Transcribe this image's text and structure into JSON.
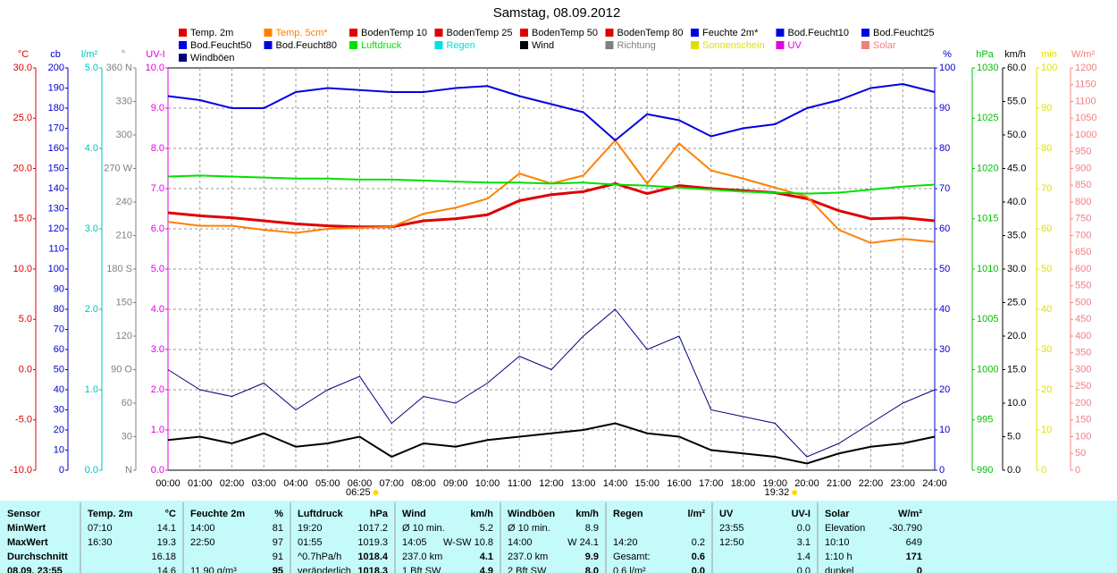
{
  "chart_data": {
    "type": "line",
    "title": "Samstag, 08.09.2012",
    "categories": [
      "00:00",
      "01:00",
      "02:00",
      "03:00",
      "04:00",
      "05:00",
      "06:00",
      "07:00",
      "08:00",
      "09:00",
      "10:00",
      "11:00",
      "12:00",
      "13:00",
      "14:00",
      "15:00",
      "16:00",
      "17:00",
      "18:00",
      "19:00",
      "20:00",
      "21:00",
      "22:00",
      "23:00",
      "24:00"
    ],
    "grid": true,
    "grid_axis": 4,
    "axes": [
      {
        "label": "°C",
        "color": "#e00000",
        "side": "left",
        "lim": [
          -10,
          30
        ],
        "ticks": [
          {
            "value": -10,
            "label": "-10.0"
          },
          {
            "value": -5,
            "label": "-5.0"
          },
          {
            "value": 0,
            "label": "0.0"
          },
          {
            "value": 5,
            "label": "5.0"
          },
          {
            "value": 10,
            "label": "10.0"
          },
          {
            "value": 15,
            "label": "15.0"
          },
          {
            "value": 20,
            "label": "20.0"
          },
          {
            "value": 25,
            "label": "25.0"
          },
          {
            "value": 30,
            "label": "30.0"
          }
        ]
      },
      {
        "label": "cb",
        "color": "#0000d0",
        "side": "left",
        "lim": [
          0,
          200
        ],
        "ticks": [
          0,
          10,
          20,
          30,
          40,
          50,
          60,
          70,
          80,
          90,
          100,
          110,
          120,
          130,
          140,
          150,
          160,
          170,
          180,
          190,
          200
        ]
      },
      {
        "label": "l/m²",
        "color": "#00c0c0",
        "side": "left",
        "lim": [
          0,
          5
        ],
        "ticks": [
          {
            "value": 0,
            "label": "0.0"
          },
          {
            "value": 1,
            "label": "1.0"
          },
          {
            "value": 2,
            "label": "2.0"
          },
          {
            "value": 3,
            "label": "3.0"
          },
          {
            "value": 4,
            "label": "4.0"
          },
          {
            "value": 5,
            "label": "5.0"
          }
        ]
      },
      {
        "label": "°",
        "color": "#808080",
        "side": "left",
        "lim": [
          0,
          360
        ],
        "ticks": [
          {
            "value": 0,
            "label": "N"
          },
          30,
          60,
          {
            "value": 90,
            "label": "90 O"
          },
          120,
          150,
          {
            "value": 180,
            "label": "180 S"
          },
          210,
          240,
          {
            "value": 270,
            "label": "270 W"
          },
          300,
          330,
          {
            "value": 360,
            "label": "360 N"
          }
        ]
      },
      {
        "label": "UV-I",
        "color": "#e000e0",
        "side": "left",
        "lim": [
          0,
          10
        ],
        "ticks": [
          {
            "value": 0,
            "label": "0.0"
          },
          {
            "value": 1,
            "label": "1.0"
          },
          {
            "value": 2,
            "label": "2.0"
          },
          {
            "value": 3,
            "label": "3.0"
          },
          {
            "value": 4,
            "label": "4.0"
          },
          {
            "value": 5,
            "label": "5.0"
          },
          {
            "value": 6,
            "label": "6.0"
          },
          {
            "value": 7,
            "label": "7.0"
          },
          {
            "value": 8,
            "label": "8.0"
          },
          {
            "value": 9,
            "label": "9.0"
          },
          {
            "value": 10,
            "label": "10.0"
          }
        ]
      },
      {
        "label": "%",
        "color": "#0000d0",
        "side": "right",
        "lim": [
          0,
          100
        ],
        "ticks": [
          0,
          10,
          20,
          30,
          40,
          50,
          60,
          70,
          80,
          90,
          100
        ]
      },
      {
        "label": "hPa",
        "color": "#00c000",
        "side": "right",
        "lim": [
          990,
          1030
        ],
        "ticks": [
          990,
          995,
          1000,
          1005,
          1010,
          1015,
          1020,
          1025,
          1030
        ]
      },
      {
        "label": "km/h",
        "color": "#000000",
        "side": "right",
        "lim": [
          0,
          60
        ],
        "ticks": [
          {
            "value": 0,
            "label": "0.0"
          },
          {
            "value": 5,
            "label": "5.0"
          },
          {
            "value": 10,
            "label": "10.0"
          },
          {
            "value": 15,
            "label": "15.0"
          },
          {
            "value": 20,
            "label": "20.0"
          },
          {
            "value": 25,
            "label": "25.0"
          },
          {
            "value": 30,
            "label": "30.0"
          },
          {
            "value": 35,
            "label": "35.0"
          },
          {
            "value": 40,
            "label": "40.0"
          },
          {
            "value": 45,
            "label": "45.0"
          },
          {
            "value": 50,
            "label": "50.0"
          },
          {
            "value": 55,
            "label": "55.0"
          },
          {
            "value": 60,
            "label": "60.0"
          }
        ]
      },
      {
        "label": "min",
        "color": "#e0e000",
        "side": "right",
        "lim": [
          0,
          100
        ],
        "ticks": [
          0,
          10,
          20,
          30,
          40,
          50,
          60,
          70,
          80,
          90,
          100
        ]
      },
      {
        "label": "W/m²",
        "color": "#f08080",
        "side": "right",
        "lim": [
          0,
          1200
        ],
        "ticks": [
          0,
          50,
          100,
          150,
          200,
          250,
          300,
          350,
          400,
          450,
          500,
          550,
          600,
          650,
          700,
          750,
          800,
          850,
          900,
          950,
          1000,
          1050,
          1100,
          1150,
          1200
        ]
      }
    ],
    "series": [
      {
        "name": "Temp. 2m",
        "color": "#e00000",
        "axis": 0,
        "width": 3,
        "values": [
          15.6,
          15.3,
          15.1,
          14.8,
          14.5,
          14.3,
          14.2,
          14.2,
          14.8,
          15.0,
          15.4,
          16.8,
          17.4,
          17.7,
          18.5,
          17.5,
          18.3,
          18.0,
          17.8,
          17.6,
          17.0,
          15.8,
          15.0,
          15.1,
          14.8
        ]
      },
      {
        "name": "Temp. 5cm*",
        "color": "#ff8000",
        "axis": 0,
        "width": 2,
        "values": [
          14.7,
          14.3,
          14.3,
          13.9,
          13.6,
          14.0,
          14.1,
          14.2,
          15.5,
          16.1,
          17.0,
          19.5,
          18.5,
          19.3,
          22.8,
          18.5,
          22.5,
          19.8,
          19.0,
          18.1,
          17.2,
          13.9,
          12.6,
          13.0,
          12.7
        ]
      },
      {
        "name": "BodenTemp 10",
        "color": "#e00000"
      },
      {
        "name": "BodenTemp 25",
        "color": "#e00000"
      },
      {
        "name": "BodenTemp 50",
        "color": "#e00000"
      },
      {
        "name": "BodenTemp 80",
        "color": "#e00000"
      },
      {
        "name": "Feuchte 2m*",
        "color": "#0000e0",
        "axis": 5,
        "width": 2,
        "values": [
          93,
          92,
          90,
          90,
          94,
          95,
          94.5,
          94,
          94,
          95,
          95.5,
          93,
          91,
          89,
          82,
          88.5,
          87,
          83,
          85,
          86,
          90,
          92,
          95,
          96,
          94
        ]
      },
      {
        "name": "Bod.Feucht10",
        "color": "#0000e0"
      },
      {
        "name": "Bod.Feucht25",
        "color": "#0000e0"
      },
      {
        "name": "Bod.Feucht50",
        "color": "#0000e0"
      },
      {
        "name": "Bod.Feucht80",
        "color": "#0000e0"
      },
      {
        "name": "Luftdruck",
        "color": "#00e000",
        "axis": 6,
        "width": 2,
        "values": [
          1019.2,
          1019.3,
          1019.2,
          1019.1,
          1019.0,
          1019.0,
          1018.9,
          1018.9,
          1018.8,
          1018.7,
          1018.6,
          1018.6,
          1018.5,
          1018.6,
          1018.4,
          1018.3,
          1018.1,
          1017.9,
          1017.7,
          1017.6,
          1017.5,
          1017.6,
          1017.9,
          1018.2,
          1018.4
        ]
      },
      {
        "name": "Regen",
        "color": "#00e0e0"
      },
      {
        "name": "Wind",
        "color": "#000000",
        "axis": 7,
        "width": 2,
        "values": [
          4.5,
          5,
          4,
          5.5,
          3.5,
          4,
          5,
          2,
          4,
          3.5,
          4.5,
          5,
          5.5,
          6,
          7,
          5.5,
          5,
          3,
          2.5,
          2,
          1,
          2.5,
          3.5,
          4,
          5
        ]
      },
      {
        "name": "Richtung",
        "color": "#808080"
      },
      {
        "name": "Sonnenschein",
        "color": "#e0e000"
      },
      {
        "name": "UV",
        "color": "#e000e0"
      },
      {
        "name": "Solar",
        "color": "#f08080"
      },
      {
        "name": "Windböen",
        "color": "#000080",
        "axis": 7,
        "width": 1,
        "values": [
          15,
          12,
          11,
          13,
          9,
          12,
          14,
          7,
          11,
          10,
          13,
          17,
          15,
          20,
          24,
          18,
          20,
          9,
          8,
          7,
          2,
          4,
          7,
          10,
          12
        ]
      }
    ],
    "annotations": [
      {
        "label": "06:25",
        "hour": 6.42
      },
      {
        "label": "19:32",
        "hour": 19.53
      }
    ]
  },
  "table": {
    "header": [
      [
        "Sensor"
      ],
      [
        "Temp. 2m",
        "°C"
      ],
      [
        "Feuchte 2m",
        "%"
      ],
      [
        "Luftdruck",
        "hPa"
      ],
      [
        "Wind",
        "km/h"
      ],
      [
        "Windböen",
        "km/h"
      ],
      [
        "Regen",
        "l/m²"
      ],
      [
        "UV",
        "UV-I"
      ],
      [
        "Solar",
        "W/m²"
      ]
    ],
    "rows": [
      [
        [
          "MinWert"
        ],
        [
          "07:10",
          "14.1"
        ],
        [
          "14:00",
          "81"
        ],
        [
          "19:20",
          "1017.2"
        ],
        [
          "Ø 10 min.",
          "5.2"
        ],
        [
          "Ø 10 min.",
          "8.9"
        ],
        [],
        [
          "23:55",
          "0.0"
        ],
        [
          "Elevation",
          "-30.790"
        ]
      ],
      [
        [
          "MaxWert"
        ],
        [
          "16:30",
          "19.3"
        ],
        [
          "22:50",
          "97"
        ],
        [
          "01:55",
          "1019.3"
        ],
        [
          "14:05",
          "W-SW 10.8"
        ],
        [
          "14:00",
          "W 24.1"
        ],
        [
          "14:20",
          "0.2"
        ],
        [
          "12:50",
          "3.1"
        ],
        [
          "10:10",
          "649"
        ]
      ],
      [
        [
          "Durchschnitt"
        ],
        [
          "16.18"
        ],
        [
          "91"
        ],
        [
          "^0.7hPa/h",
          "1018.4"
        ],
        [
          "237.0 km",
          "4.1"
        ],
        [
          "237.0 km",
          "9.9"
        ],
        [
          "Gesamt:",
          "0.6"
        ],
        [
          "1.4"
        ],
        [
          "1:10 h",
          "171"
        ]
      ],
      [
        [
          "08.09. 23:55"
        ],
        [
          "14.6"
        ],
        [
          "11.90 g/m³",
          "95"
        ],
        [
          "veränderlich",
          "1018.3"
        ],
        [
          "1 Bft SW",
          "4.9"
        ],
        [
          "2 Bft SW",
          "8.0"
        ],
        [
          "0.6 l/m²",
          "0.0"
        ],
        [
          "0.0"
        ],
        [
          "dunkel",
          "0"
        ]
      ]
    ]
  }
}
